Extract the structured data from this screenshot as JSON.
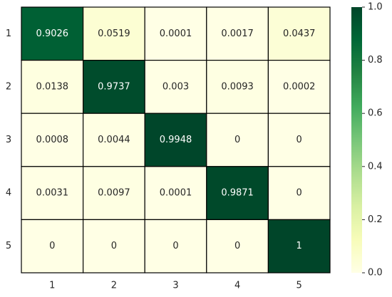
{
  "chart_data": {
    "type": "heatmap",
    "x": [
      "1",
      "2",
      "3",
      "4",
      "5"
    ],
    "y": [
      "1",
      "2",
      "3",
      "4",
      "5"
    ],
    "values": [
      [
        0.9026,
        0.0519,
        0.0001,
        0.0017,
        0.0437
      ],
      [
        0.0138,
        0.9737,
        0.003,
        0.0093,
        0.0002
      ],
      [
        0.0008,
        0.0044,
        0.9948,
        0,
        0
      ],
      [
        0.0031,
        0.0097,
        0.0001,
        0.9871,
        0
      ],
      [
        0,
        0,
        0,
        0,
        1
      ]
    ],
    "colormap": "YlGn",
    "clim": [
      0,
      1
    ],
    "cticks": [
      {
        "value": 0,
        "label": "0.0"
      },
      0.2,
      0.4,
      0.6,
      0.8,
      {
        "value": 1,
        "label": "1.0"
      }
    ]
  }
}
